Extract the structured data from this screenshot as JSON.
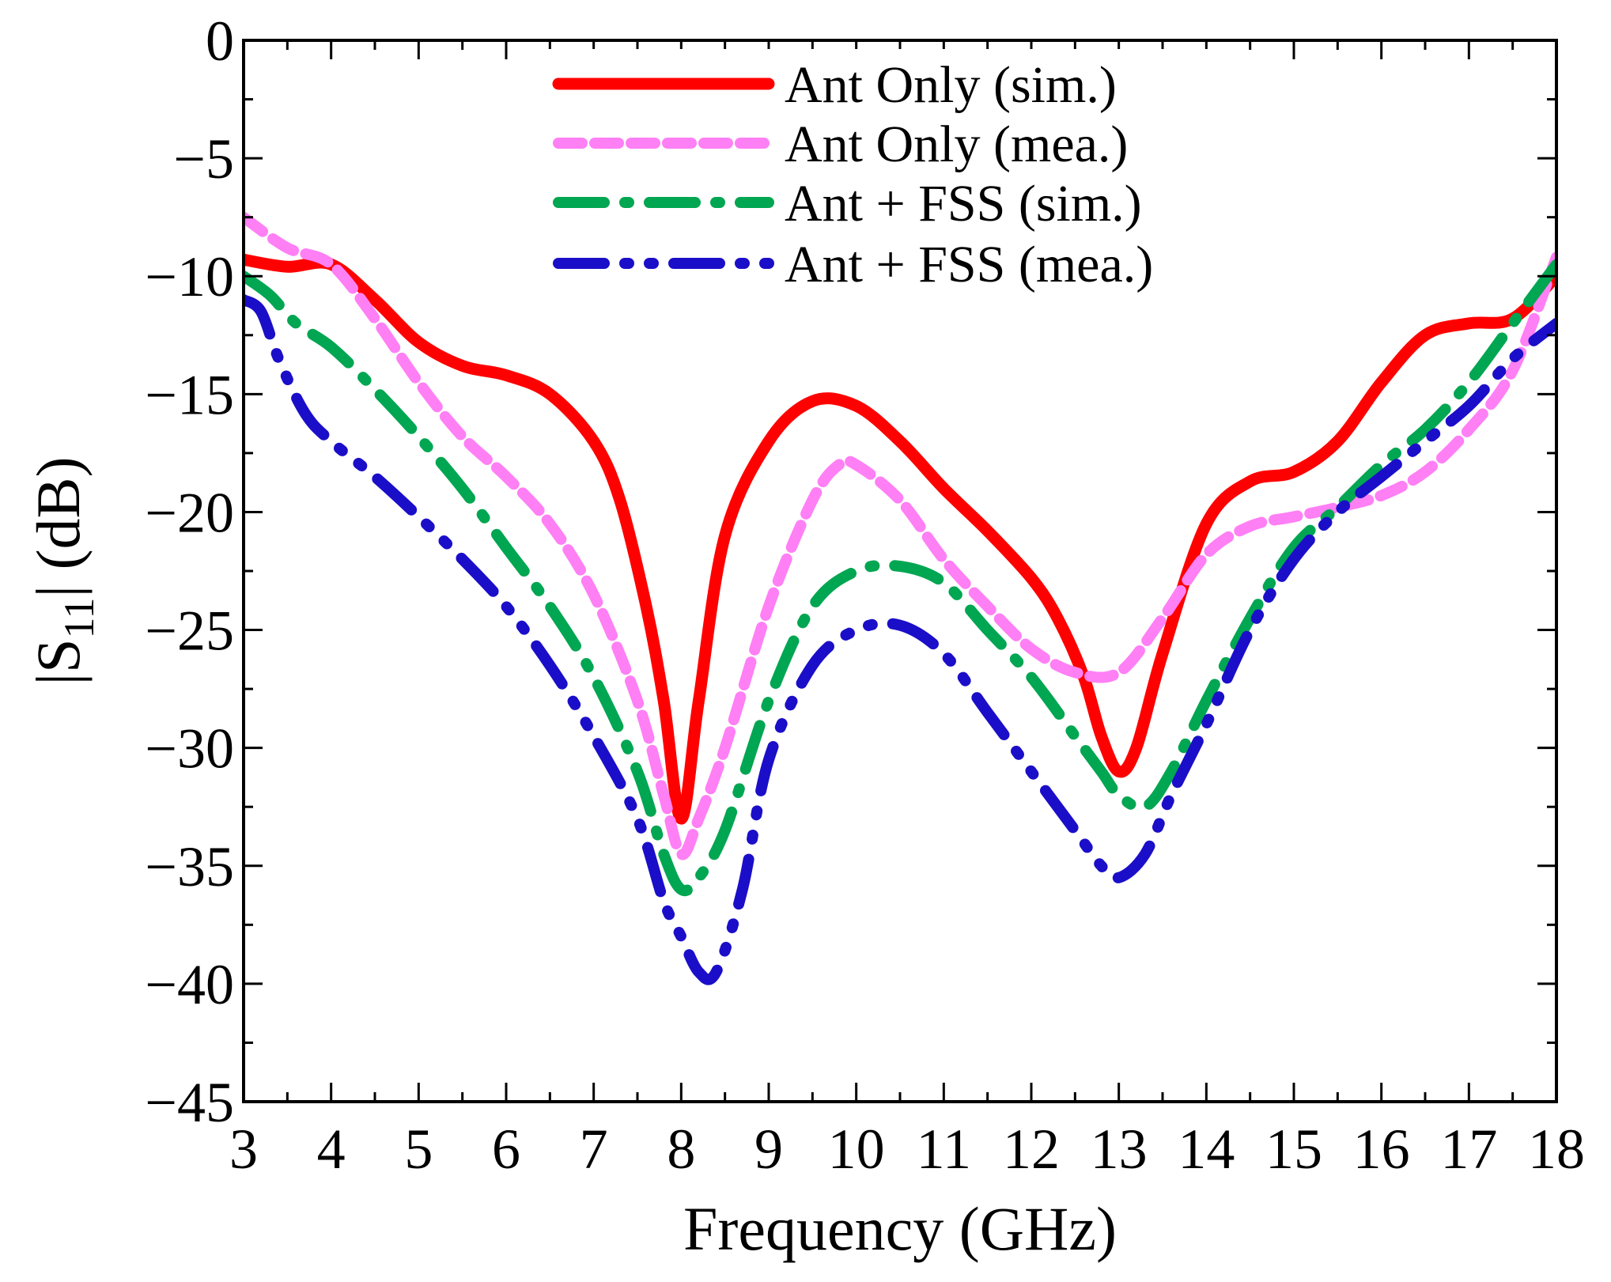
{
  "chart_data": {
    "type": "line",
    "title": "",
    "xlabel": "Frequency (GHz)",
    "ylabel": {
      "prefix": "|S",
      "subscript": "11",
      "suffix": "| (dB)"
    },
    "xlim": [
      3,
      18
    ],
    "ylim": [
      -45,
      0
    ],
    "xticks": [
      3,
      4,
      5,
      6,
      7,
      8,
      9,
      10,
      11,
      12,
      13,
      14,
      15,
      16,
      17,
      18
    ],
    "yticks": [
      0,
      -5,
      -10,
      -15,
      -20,
      -25,
      -30,
      -35,
      -40,
      -45
    ],
    "xtick_labels": [
      "3",
      "4",
      "5",
      "6",
      "7",
      "8",
      "9",
      "10",
      "11",
      "12",
      "13",
      "14",
      "15",
      "16",
      "17",
      "18"
    ],
    "ytick_labels": [
      "0",
      "−5",
      "−10",
      "−15",
      "−20",
      "−25",
      "−30",
      "−35",
      "−40",
      "−45"
    ],
    "grid": false,
    "legend_position": "top-center",
    "series": [
      {
        "name": "Ant Only (sim.)",
        "color": "#ff0000",
        "style": "solid",
        "x": [
          3.0,
          3.5,
          4.0,
          4.5,
          5.0,
          5.5,
          6.0,
          6.5,
          7.0,
          7.3,
          7.6,
          7.8,
          8.0,
          8.2,
          8.5,
          9.0,
          9.5,
          10.0,
          10.5,
          11.0,
          11.5,
          12.0,
          12.3,
          12.6,
          12.8,
          13.0,
          13.2,
          13.5,
          14.0,
          14.5,
          15.0,
          15.5,
          16.0,
          16.5,
          17.0,
          17.5,
          18.0
        ],
        "y": [
          -9.3,
          -9.6,
          -9.5,
          -11.0,
          -12.8,
          -13.8,
          -14.2,
          -15.0,
          -17.0,
          -19.5,
          -24.0,
          -28.0,
          -33.0,
          -28.0,
          -21.0,
          -17.0,
          -15.3,
          -15.5,
          -17.0,
          -19.0,
          -20.8,
          -22.8,
          -24.5,
          -27.0,
          -29.5,
          -31.0,
          -30.0,
          -26.0,
          -20.5,
          -18.7,
          -18.3,
          -17.0,
          -14.5,
          -12.5,
          -12.0,
          -11.8,
          -10.0
        ]
      },
      {
        "name": "Ant Only (mea.)",
        "color": "#ff7ff5",
        "style": "dash",
        "x": [
          3.0,
          3.5,
          4.0,
          4.5,
          5.0,
          5.5,
          6.0,
          6.5,
          7.0,
          7.5,
          7.8,
          8.0,
          8.2,
          8.5,
          9.0,
          9.5,
          9.8,
          10.0,
          10.5,
          11.0,
          11.5,
          12.0,
          12.5,
          13.0,
          13.5,
          14.0,
          14.5,
          15.0,
          15.5,
          16.0,
          16.5,
          17.0,
          17.5,
          18.0
        ],
        "y": [
          -7.5,
          -8.8,
          -9.5,
          -11.8,
          -14.5,
          -16.8,
          -18.5,
          -20.5,
          -23.5,
          -28.0,
          -32.0,
          -34.5,
          -33.0,
          -30.0,
          -24.0,
          -19.5,
          -18.0,
          -18.0,
          -19.5,
          -22.0,
          -24.0,
          -25.8,
          -26.8,
          -26.8,
          -24.5,
          -21.8,
          -20.6,
          -20.2,
          -19.8,
          -19.3,
          -18.3,
          -16.5,
          -14.0,
          -9.2
        ]
      },
      {
        "name": "Ant + FSS (sim.)",
        "color": "#00a651",
        "style": "dashdot",
        "x": [
          3.0,
          3.3,
          3.6,
          4.0,
          4.5,
          5.0,
          5.5,
          6.0,
          6.5,
          7.0,
          7.5,
          7.8,
          8.0,
          8.2,
          8.5,
          9.0,
          9.5,
          10.0,
          10.5,
          11.0,
          11.5,
          12.0,
          12.5,
          12.8,
          13.0,
          13.3,
          13.6,
          14.0,
          14.5,
          15.0,
          15.5,
          16.0,
          16.5,
          17.0,
          17.5,
          18.0
        ],
        "y": [
          -10.0,
          -10.8,
          -12.0,
          -13.0,
          -14.8,
          -16.8,
          -19.0,
          -21.5,
          -24.0,
          -27.0,
          -31.0,
          -34.5,
          -36.0,
          -35.5,
          -33.5,
          -28.0,
          -24.0,
          -22.5,
          -22.3,
          -23.0,
          -25.0,
          -27.0,
          -29.5,
          -31.0,
          -32.0,
          -32.5,
          -31.0,
          -28.0,
          -24.5,
          -21.5,
          -19.8,
          -18.0,
          -16.5,
          -14.5,
          -12.0,
          -9.5
        ]
      },
      {
        "name": "Ant + FSS (mea.)",
        "color": "#1b0ec8",
        "style": "dashdotdot",
        "x": [
          3.0,
          3.2,
          3.4,
          3.7,
          4.0,
          4.5,
          5.0,
          5.5,
          6.0,
          6.5,
          7.0,
          7.5,
          7.8,
          8.0,
          8.2,
          8.4,
          8.7,
          9.0,
          9.5,
          10.0,
          10.5,
          11.0,
          11.5,
          12.0,
          12.5,
          12.8,
          13.0,
          13.3,
          13.6,
          14.0,
          14.5,
          15.0,
          15.5,
          16.0,
          16.5,
          17.0,
          17.5,
          18.0
        ],
        "y": [
          -11.0,
          -11.5,
          -13.5,
          -15.8,
          -17.0,
          -18.5,
          -20.2,
          -22.0,
          -24.0,
          -26.5,
          -29.5,
          -33.0,
          -36.5,
          -38.0,
          -39.5,
          -39.5,
          -36.0,
          -30.5,
          -26.5,
          -25.0,
          -24.8,
          -26.0,
          -28.5,
          -31.0,
          -33.5,
          -35.0,
          -35.5,
          -34.5,
          -32.0,
          -29.0,
          -25.0,
          -22.0,
          -20.0,
          -18.5,
          -17.0,
          -15.5,
          -13.5,
          -12.0
        ]
      }
    ]
  }
}
